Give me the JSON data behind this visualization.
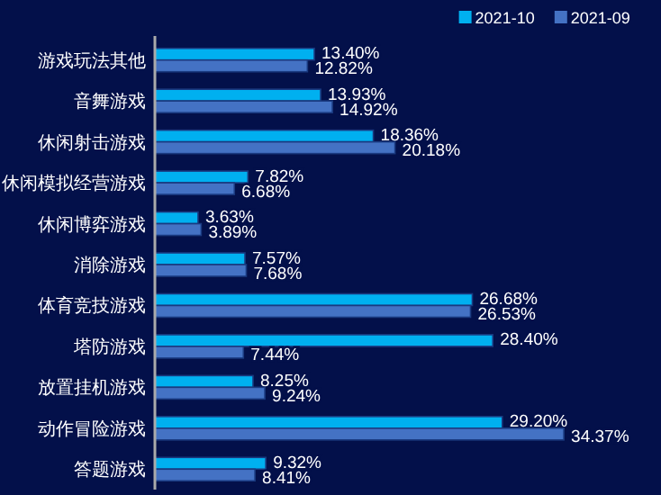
{
  "chart_data": {
    "type": "bar",
    "orientation": "horizontal",
    "categories": [
      "游戏玩法其他",
      "音舞游戏",
      "休闲射击游戏",
      "休闲模拟经营游戏",
      "休闲博弈游戏",
      "消除游戏",
      "体育竞技游戏",
      "塔防游戏",
      "放置挂机游戏",
      "动作冒险游戏",
      "答题游戏"
    ],
    "series": [
      {
        "name": "2021-10",
        "color": "#00b0f0",
        "values": [
          13.4,
          13.93,
          18.36,
          7.82,
          3.63,
          7.57,
          26.68,
          28.4,
          8.25,
          29.2,
          9.32
        ],
        "value_labels": [
          "13.40%",
          "13.93%",
          "18.36%",
          "7.82%",
          "3.63%",
          "7.57%",
          "26.68%",
          "28.40%",
          "8.25%",
          "29.20%",
          "9.32%"
        ]
      },
      {
        "name": "2021-09",
        "color": "#4472c4",
        "values": [
          12.82,
          14.92,
          20.18,
          6.68,
          3.89,
          7.68,
          26.53,
          7.44,
          9.24,
          34.37,
          8.41
        ],
        "value_labels": [
          "12.82%",
          "14.92%",
          "20.18%",
          "6.68%",
          "3.89%",
          "7.68%",
          "26.53%",
          "7.44%",
          "9.24%",
          "34.37%",
          "8.41%"
        ]
      }
    ],
    "tick_labels": "y",
    "legend": "top right",
    "grid": false
  }
}
